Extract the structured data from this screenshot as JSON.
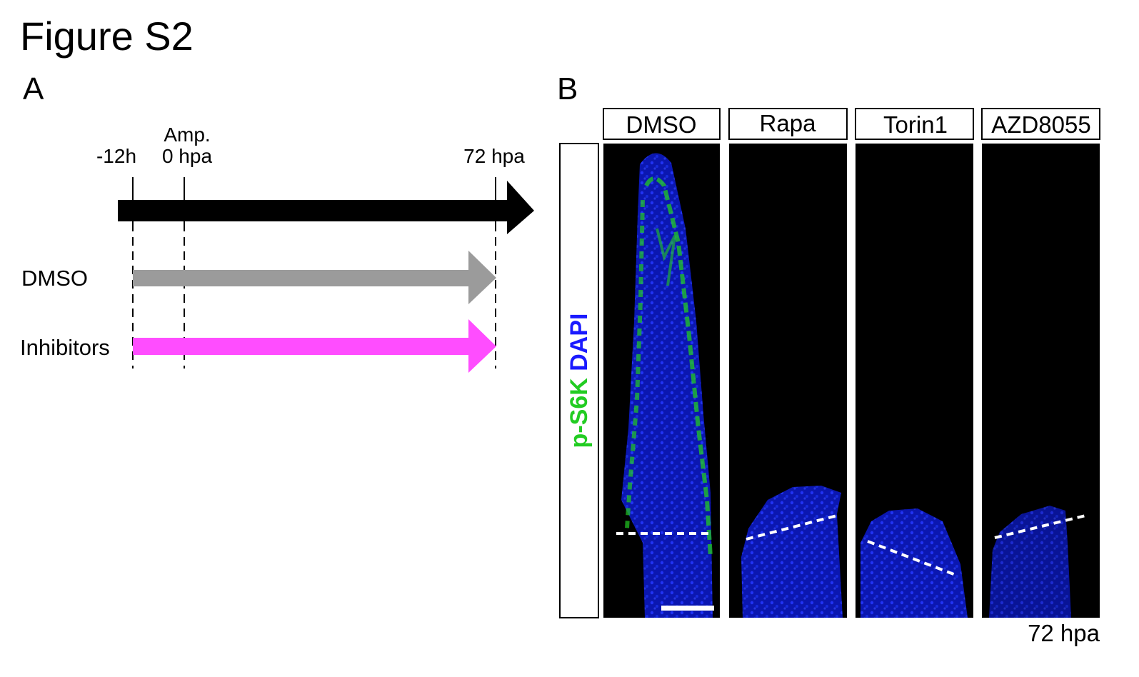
{
  "figure": {
    "title": "Figure S2",
    "panel_a": "A",
    "panel_b": "B"
  },
  "timeline": {
    "points": [
      {
        "label": "-12h",
        "label_top": ""
      },
      {
        "label": "0 hpa",
        "label_top": "Amp."
      },
      {
        "label": "72 hpa",
        "label_top": ""
      }
    ],
    "rows": [
      {
        "label": "DMSO",
        "color": "#9b9b9b"
      },
      {
        "label": "Inhibitors",
        "color": "#ff4dff"
      }
    ],
    "main_arrow_color": "#000000"
  },
  "panel_b": {
    "treatments": [
      "DMSO",
      "Rapa",
      "Torin1",
      "AZD8055"
    ],
    "stain": {
      "part1": "p-S6K",
      "part1_color": "#22cc22",
      "part2": "DAPI",
      "part2_color": "#1a1aff"
    },
    "timepoint": "72 hpa",
    "image_bg": "#000000",
    "tissue_color": "#1020c8",
    "signal_color": "#22cc22"
  }
}
